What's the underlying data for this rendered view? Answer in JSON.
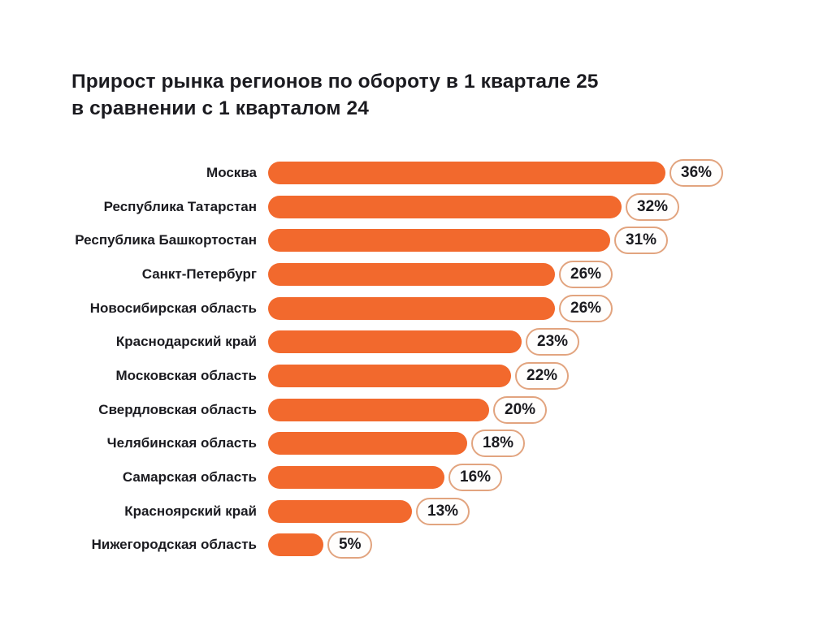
{
  "title": {
    "line1": "Прирост рынка регионов по обороту в 1 квартале 25",
    "line2": "в сравнении с 1 кварталом 24"
  },
  "chart_data": {
    "type": "bar",
    "orientation": "horizontal",
    "title": "Прирост рынка регионов по обороту в 1 квартале 25 в сравнении с 1 кварталом 24",
    "categories": [
      "Москва",
      "Республика Татарстан",
      "Республика Башкортостан",
      "Санкт-Петербург",
      "Новосибирская область",
      "Краснодарский край",
      "Московская область",
      "Свердловская область",
      "Челябинская область",
      "Самарская область",
      "Красноярский край",
      "Нижегородская область"
    ],
    "values": [
      36,
      32,
      31,
      26,
      26,
      23,
      22,
      20,
      18,
      16,
      13,
      5
    ],
    "value_labels": [
      "36%",
      "32%",
      "31%",
      "26%",
      "26%",
      "23%",
      "22%",
      "20%",
      "18%",
      "16%",
      "13%",
      "5%"
    ],
    "xlim": [
      0,
      36
    ],
    "xlabel": "",
    "ylabel": "",
    "grid": false,
    "legend": false,
    "bar_color": "#f2692d",
    "badge_border_color": "#e2a47f",
    "badge_background": "#fffefd",
    "text_color": "#1b1b20",
    "background_color": "#ffffff"
  }
}
